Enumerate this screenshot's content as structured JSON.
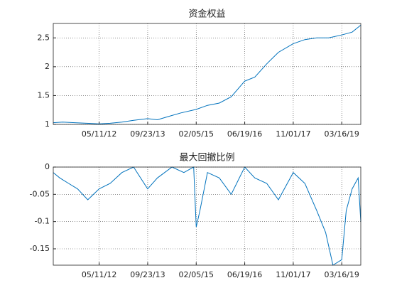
{
  "chart_data": [
    {
      "type": "line",
      "title": "资金权益",
      "x": [
        "01/24/11",
        "05/01/11",
        "09/01/11",
        "01/01/12",
        "05/11/12",
        "09/01/12",
        "01/01/13",
        "05/01/13",
        "09/23/13",
        "01/01/14",
        "05/01/14",
        "09/01/14",
        "02/05/15",
        "06/01/15",
        "10/01/15",
        "02/01/16",
        "06/19/16",
        "10/01/16",
        "02/01/17",
        "06/01/17",
        "11/01/17",
        "03/01/18",
        "07/01/18",
        "11/01/18",
        "03/16/19",
        "07/01/19",
        "09/28/19"
      ],
      "series": [
        {
          "name": "资金权益",
          "color": "#0072bd",
          "values": [
            1.03,
            1.04,
            1.03,
            1.02,
            1.01,
            1.02,
            1.04,
            1.07,
            1.1,
            1.08,
            1.14,
            1.2,
            1.26,
            1.33,
            1.37,
            1.48,
            1.75,
            1.82,
            2.05,
            2.25,
            2.4,
            2.47,
            2.5,
            2.5,
            2.55,
            2.6,
            2.72
          ]
        }
      ],
      "xlim": [
        "01/24/11",
        "09/28/19"
      ],
      "xticks": [
        "05/11/12",
        "09/23/13",
        "02/05/15",
        "06/19/16",
        "11/01/17",
        "03/16/19"
      ],
      "ylim": [
        1,
        2.75
      ],
      "yticks": [
        1,
        1.5,
        2,
        2.5
      ],
      "grid": true
    },
    {
      "type": "line",
      "title": "最大回撤比例",
      "x": [
        "01/24/11",
        "04/01/11",
        "07/01/11",
        "10/01/11",
        "01/15/12",
        "05/11/12",
        "09/01/12",
        "01/01/13",
        "05/01/13",
        "09/23/13",
        "01/01/14",
        "06/01/14",
        "10/01/14",
        "01/10/15",
        "02/05/15",
        "03/15/15",
        "06/01/15",
        "10/01/15",
        "02/01/16",
        "06/19/16",
        "10/01/16",
        "02/01/17",
        "06/01/17",
        "11/01/17",
        "03/01/18",
        "07/01/18",
        "10/01/18",
        "12/15/18",
        "03/16/19",
        "05/01/19",
        "07/01/19",
        "09/01/19",
        "09/28/19"
      ],
      "series": [
        {
          "name": "最大回撤比例",
          "color": "#0072bd",
          "values": [
            -0.01,
            -0.02,
            -0.03,
            -0.04,
            -0.06,
            -0.04,
            -0.03,
            -0.01,
            0,
            -0.04,
            -0.02,
            0,
            -0.01,
            0,
            -0.11,
            -0.08,
            -0.01,
            -0.02,
            -0.05,
            0,
            -0.02,
            -0.03,
            -0.06,
            -0.01,
            -0.03,
            -0.08,
            -0.12,
            -0.18,
            -0.17,
            -0.08,
            -0.04,
            -0.02,
            -0.1
          ]
        }
      ],
      "xlim": [
        "01/24/11",
        "09/28/19"
      ],
      "xticks": [
        "05/11/12",
        "09/23/13",
        "02/05/15",
        "06/19/16",
        "11/01/17",
        "03/16/19"
      ],
      "ylim": [
        -0.18,
        0
      ],
      "yticks": [
        0,
        -0.05,
        -0.1,
        -0.15
      ],
      "grid": true
    }
  ]
}
